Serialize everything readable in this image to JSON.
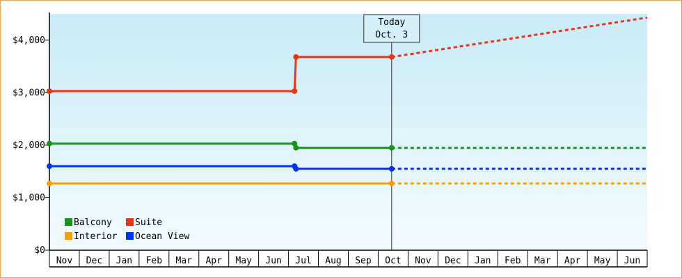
{
  "chart_data": {
    "type": "line",
    "title": "",
    "xlabel": "",
    "ylabel": "",
    "y_ticks": [
      "$0",
      "$1,000",
      "$2,000",
      "$3,000",
      "$4,000"
    ],
    "ylim": [
      0,
      4500
    ],
    "x_months": [
      "Nov",
      "Dec",
      "Jan",
      "Feb",
      "Mar",
      "Apr",
      "May",
      "Jun",
      "Jul",
      "Aug",
      "Sep",
      "Oct",
      "Nov",
      "Dec",
      "Jan",
      "Feb",
      "Mar",
      "Apr",
      "May",
      "Jun"
    ],
    "today": {
      "line1": "Today",
      "line2": "Oct. 3",
      "position": 11.45
    },
    "grid": false,
    "background": [
      "#c9ecf8",
      "#f2fbfe"
    ],
    "legend": {
      "placement": "bottom-left",
      "items": [
        {
          "name": "Balcony",
          "color": "#119911"
        },
        {
          "name": "Suite",
          "color": "#ee3311"
        },
        {
          "name": "Interior",
          "color": "#f5a000"
        },
        {
          "name": "Ocean View",
          "color": "#0033ee"
        }
      ]
    },
    "series": [
      {
        "name": "Suite",
        "color": "#ee3311",
        "points": [
          [
            0,
            3030
          ],
          [
            8.2,
            3030
          ],
          [
            8.25,
            3680
          ],
          [
            11.45,
            3680
          ]
        ],
        "forecast": [
          [
            11.45,
            3680
          ],
          [
            20,
            4430
          ]
        ]
      },
      {
        "name": "Balcony",
        "color": "#119911",
        "points": [
          [
            0,
            2030
          ],
          [
            8.2,
            2030
          ],
          [
            8.25,
            1950
          ],
          [
            11.45,
            1950
          ]
        ],
        "forecast": [
          [
            11.45,
            1950
          ],
          [
            20,
            1950
          ]
        ]
      },
      {
        "name": "Ocean View",
        "color": "#0033ee",
        "points": [
          [
            0,
            1600
          ],
          [
            8.2,
            1600
          ],
          [
            8.25,
            1550
          ],
          [
            11.45,
            1550
          ]
        ],
        "forecast": [
          [
            11.45,
            1550
          ],
          [
            20,
            1550
          ]
        ]
      },
      {
        "name": "Interior",
        "color": "#f5a000",
        "points": [
          [
            0,
            1270
          ],
          [
            11.45,
            1270
          ]
        ],
        "forecast": [
          [
            11.45,
            1270
          ],
          [
            20,
            1270
          ]
        ]
      }
    ]
  }
}
